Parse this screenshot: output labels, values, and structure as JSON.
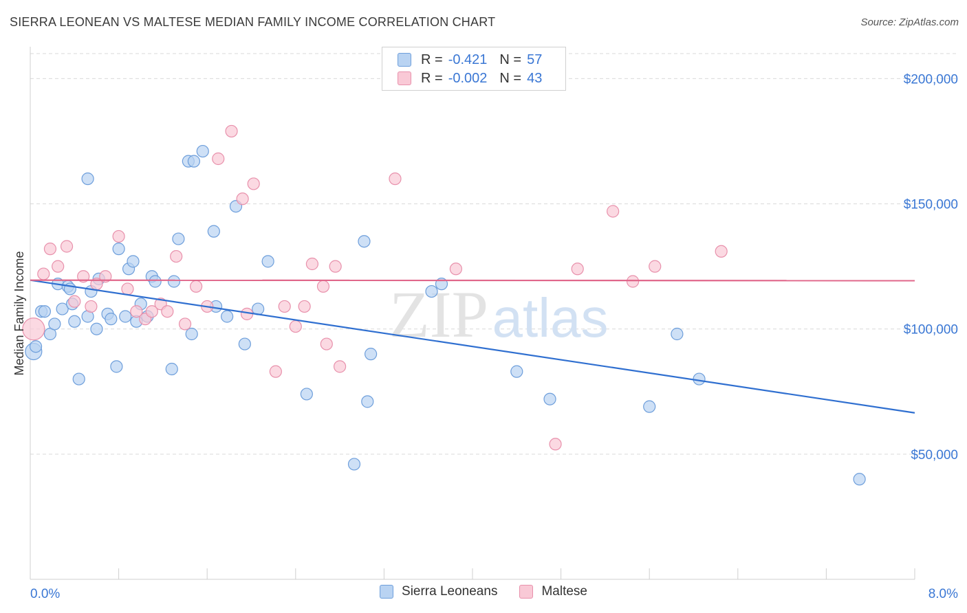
{
  "header": {
    "title": "SIERRA LEONEAN VS MALTESE MEDIAN FAMILY INCOME CORRELATION CHART",
    "source": "Source: ZipAtlas.com"
  },
  "legend": {
    "rows": [
      {
        "r_label": "R =",
        "r_value": "-0.421",
        "n_label": "N =",
        "n_value": "57"
      },
      {
        "r_label": "R =",
        "r_value": "-0.002",
        "n_label": "N =",
        "n_value": "43"
      }
    ]
  },
  "watermark": {
    "zip": "ZIP",
    "atlas": "atlas"
  },
  "colors": {
    "blue_fill": "#b9d3f2",
    "blue_stroke": "#6d9edb",
    "blue_line": "#2f6fd0",
    "pink_fill": "#f9c9d6",
    "pink_stroke": "#e890ab",
    "pink_line": "#e0668a",
    "axis_text": "#3a77d4",
    "grid": "#d9d9d9"
  },
  "chart_data": {
    "type": "scatter",
    "title": "SIERRA LEONEAN VS MALTESE MEDIAN FAMILY INCOME CORRELATION CHART",
    "xlabel": "",
    "ylabel": "Median Family Income",
    "xlim": [
      0,
      8
    ],
    "ylim": [
      0,
      210000
    ],
    "x_tick_labels": [
      "0.0%",
      "8.0%"
    ],
    "y_ticks": [
      50000,
      100000,
      150000,
      200000
    ],
    "y_tick_labels": [
      "$50,000",
      "$100,000",
      "$150,000",
      "$200,000"
    ],
    "grid": "horizontal dashed",
    "legend_position": "top-center and bottom",
    "series": [
      {
        "name": "Sierra Leoneans",
        "color": "#b9d3f2",
        "trend": {
          "x": [
            0,
            8
          ],
          "y": [
            119500,
            66500
          ]
        },
        "points": [
          [
            0.03,
            91000
          ],
          [
            0.05,
            93000
          ],
          [
            0.1,
            107000
          ],
          [
            0.13,
            107000
          ],
          [
            0.18,
            98000
          ],
          [
            0.22,
            102000
          ],
          [
            0.25,
            118000
          ],
          [
            0.29,
            108000
          ],
          [
            0.34,
            117000
          ],
          [
            0.36,
            116000
          ],
          [
            0.38,
            110000
          ],
          [
            0.4,
            103000
          ],
          [
            0.44,
            80000
          ],
          [
            0.52,
            105000
          ],
          [
            0.55,
            115000
          ],
          [
            0.6,
            100000
          ],
          [
            0.62,
            120000
          ],
          [
            0.7,
            106000
          ],
          [
            0.73,
            104000
          ],
          [
            0.78,
            85000
          ],
          [
            0.8,
            132000
          ],
          [
            0.86,
            105000
          ],
          [
            0.89,
            124000
          ],
          [
            0.93,
            127000
          ],
          [
            0.96,
            103000
          ],
          [
            1.0,
            110000
          ],
          [
            1.06,
            105000
          ],
          [
            1.1,
            121000
          ],
          [
            1.13,
            119000
          ],
          [
            1.28,
            84000
          ],
          [
            1.3,
            119000
          ],
          [
            1.34,
            136000
          ],
          [
            1.43,
            167000
          ],
          [
            1.48,
            167000
          ],
          [
            1.46,
            98000
          ],
          [
            1.56,
            171000
          ],
          [
            1.66,
            139000
          ],
          [
            1.68,
            109000
          ],
          [
            1.78,
            105000
          ],
          [
            1.86,
            149000
          ],
          [
            1.94,
            94000
          ],
          [
            2.06,
            108000
          ],
          [
            2.15,
            127000
          ],
          [
            2.5,
            74000
          ],
          [
            2.93,
            46000
          ],
          [
            3.02,
            135000
          ],
          [
            3.05,
            71000
          ],
          [
            3.08,
            90000
          ],
          [
            0.52,
            160000
          ],
          [
            3.63,
            115000
          ],
          [
            3.72,
            118000
          ],
          [
            4.4,
            83000
          ],
          [
            4.7,
            72000
          ],
          [
            5.6,
            69000
          ],
          [
            5.85,
            98000
          ],
          [
            6.05,
            80000
          ],
          [
            7.5,
            40000
          ]
        ]
      },
      {
        "name": "Maltese",
        "color": "#f9c9d6",
        "trend": {
          "x": [
            0,
            8
          ],
          "y": [
            119500,
            119300
          ]
        },
        "points": [
          [
            0.03,
            100000
          ],
          [
            0.12,
            122000
          ],
          [
            0.18,
            132000
          ],
          [
            0.25,
            125000
          ],
          [
            0.33,
            133000
          ],
          [
            0.4,
            111000
          ],
          [
            0.48,
            121000
          ],
          [
            0.55,
            109000
          ],
          [
            0.6,
            118000
          ],
          [
            0.68,
            121000
          ],
          [
            0.8,
            137000
          ],
          [
            0.88,
            116000
          ],
          [
            0.96,
            107000
          ],
          [
            1.04,
            104000
          ],
          [
            1.1,
            107000
          ],
          [
            1.18,
            110000
          ],
          [
            1.24,
            107000
          ],
          [
            1.32,
            129000
          ],
          [
            1.4,
            102000
          ],
          [
            1.5,
            117000
          ],
          [
            1.6,
            109000
          ],
          [
            1.7,
            168000
          ],
          [
            1.82,
            179000
          ],
          [
            1.92,
            152000
          ],
          [
            1.96,
            106000
          ],
          [
            2.02,
            158000
          ],
          [
            2.22,
            83000
          ],
          [
            2.3,
            109000
          ],
          [
            2.4,
            101000
          ],
          [
            2.48,
            109000
          ],
          [
            2.55,
            126000
          ],
          [
            2.65,
            117000
          ],
          [
            2.68,
            94000
          ],
          [
            2.76,
            125000
          ],
          [
            2.8,
            85000
          ],
          [
            3.3,
            160000
          ],
          [
            3.85,
            124000
          ],
          [
            4.75,
            54000
          ],
          [
            4.95,
            124000
          ],
          [
            5.27,
            147000
          ],
          [
            5.45,
            119000
          ],
          [
            5.65,
            125000
          ],
          [
            6.25,
            131000
          ]
        ]
      }
    ]
  },
  "bottom_legend": [
    "Sierra Leoneans",
    "Maltese"
  ]
}
